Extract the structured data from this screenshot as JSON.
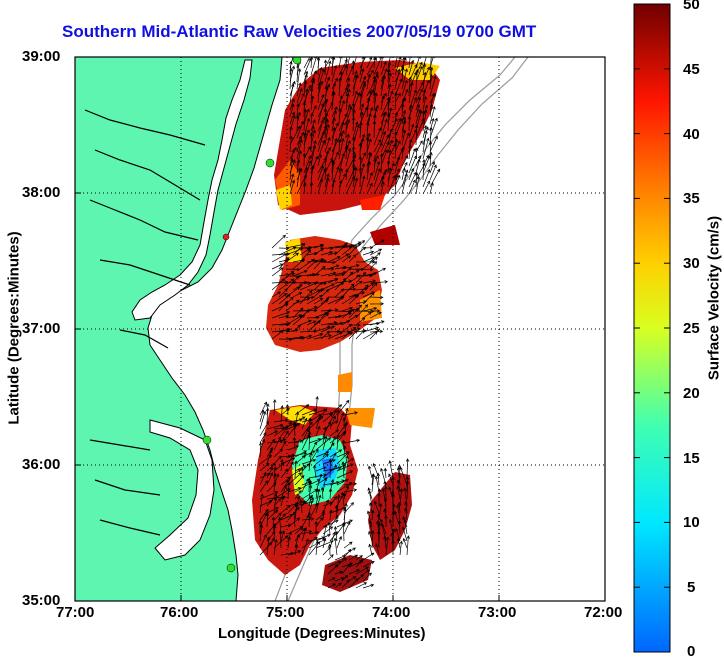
{
  "title": "Southern Mid-Atlantic Raw Velocities 2007/05/19 0700 GMT",
  "xlabel": "Longitude (Degrees:Minutes)",
  "ylabel": "Latitude (Degrees:Minutes)",
  "colorbar_label": "Surface Velocity (cm/s)",
  "x_ticks": [
    "77:00",
    "76:00",
    "75:00",
    "74:00",
    "73:00",
    "72:00"
  ],
  "y_ticks": [
    "39:00",
    "38:00",
    "37:00",
    "36:00",
    "35:00"
  ],
  "colorbar_ticks": [
    "50",
    "45",
    "40",
    "35",
    "30",
    "25",
    "20",
    "15",
    "10",
    "5",
    "0"
  ],
  "colors": {
    "land": "#5ef5b0",
    "coast": "#000000",
    "title": "#1010e0",
    "bathymetry": "#9a9a9a",
    "station": "#30e030",
    "station_alt": "#e02020"
  },
  "map": {
    "lon_range": [
      -77.0,
      -72.0
    ],
    "lat_range": [
      35.0,
      39.0
    ],
    "grid": true,
    "colorbar_range": [
      0,
      50
    ]
  }
}
